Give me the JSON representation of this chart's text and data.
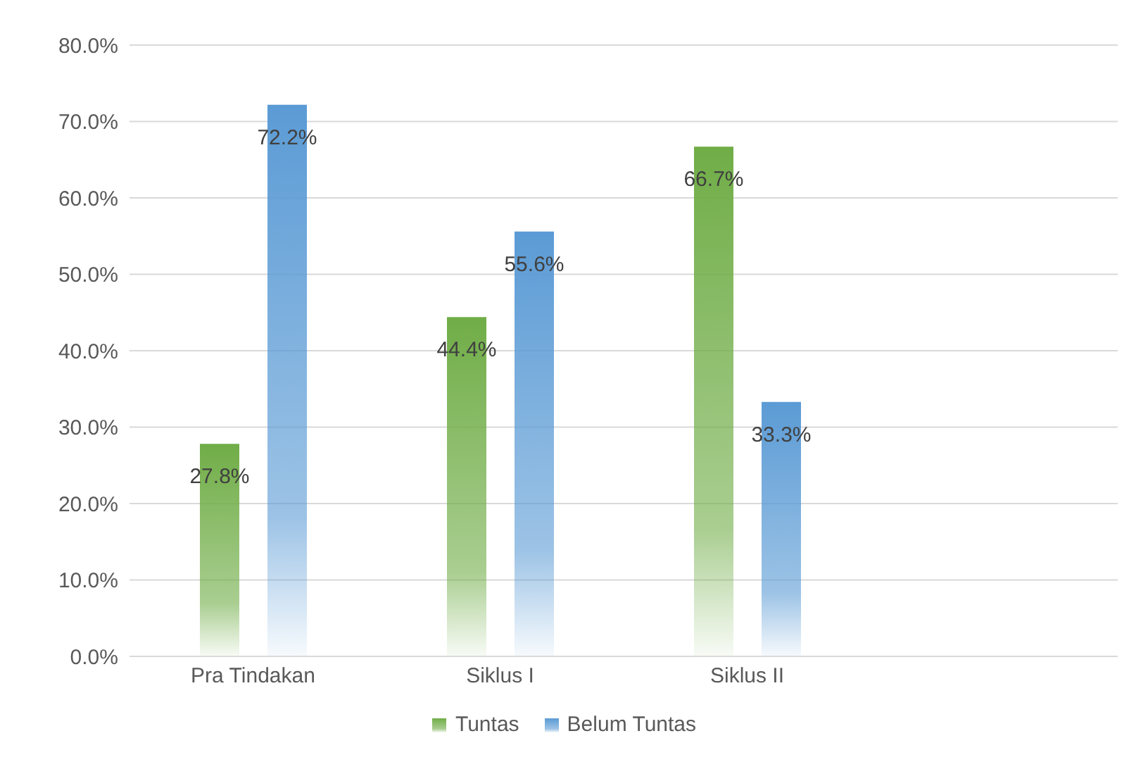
{
  "chart_data": {
    "type": "bar",
    "categories": [
      "Pra Tindakan",
      "Siklus I",
      "Siklus II",
      null
    ],
    "series": [
      {
        "name": "Tuntas",
        "color": "#70ad47",
        "values": [
          27.8,
          44.4,
          66.7,
          null
        ],
        "value_labels": [
          "27.8%",
          "44.4%",
          "66.7%",
          null
        ]
      },
      {
        "name": "Belum Tuntas",
        "color": "#5b9bd5",
        "values": [
          72.2,
          55.6,
          33.3,
          null
        ],
        "value_labels": [
          "72.2%",
          "55.6%",
          "33.3%",
          null
        ]
      }
    ],
    "ylim": [
      0,
      80
    ],
    "yticks": [
      {
        "value": 0,
        "label": "0.0%"
      },
      {
        "value": 10,
        "label": "10.0%"
      },
      {
        "value": 20,
        "label": "20.0%"
      },
      {
        "value": 30,
        "label": "30.0%"
      },
      {
        "value": 40,
        "label": "40.0%"
      },
      {
        "value": 50,
        "label": "50.0%"
      },
      {
        "value": 60,
        "label": "60.0%"
      },
      {
        "value": 70,
        "label": "70.0%"
      },
      {
        "value": 80,
        "label": "80.0%"
      }
    ],
    "grid": "y",
    "legend": "bottom"
  }
}
